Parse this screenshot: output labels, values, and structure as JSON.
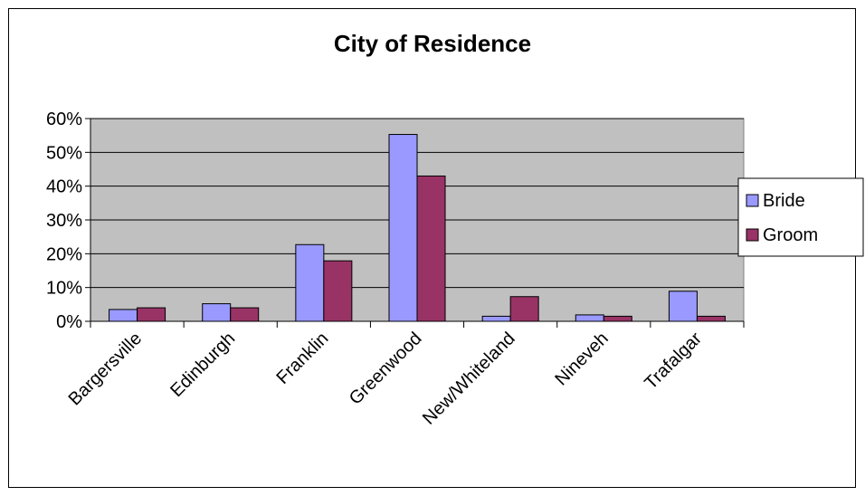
{
  "chart_data": {
    "type": "bar",
    "title": "City of Residence",
    "xlabel": "",
    "ylabel": "",
    "categories": [
      "Bargersville",
      "Edinburgh",
      "Franklin",
      "Greenwood",
      "New/Whiteland",
      "Nineveh",
      "Trafalgar"
    ],
    "series": [
      {
        "name": "Bride",
        "color": "#9999ff",
        "values": [
          0.035,
          0.052,
          0.227,
          0.553,
          0.015,
          0.019,
          0.089
        ]
      },
      {
        "name": "Groom",
        "color": "#993366",
        "values": [
          0.04,
          0.04,
          0.179,
          0.43,
          0.073,
          0.015,
          0.015
        ]
      }
    ],
    "ylim": [
      0,
      0.6
    ],
    "yticks": [
      "0%",
      "10%",
      "20%",
      "30%",
      "40%",
      "50%",
      "60%"
    ],
    "grid": true,
    "plot_background": "#c0c0c0",
    "legend_position": "right"
  }
}
